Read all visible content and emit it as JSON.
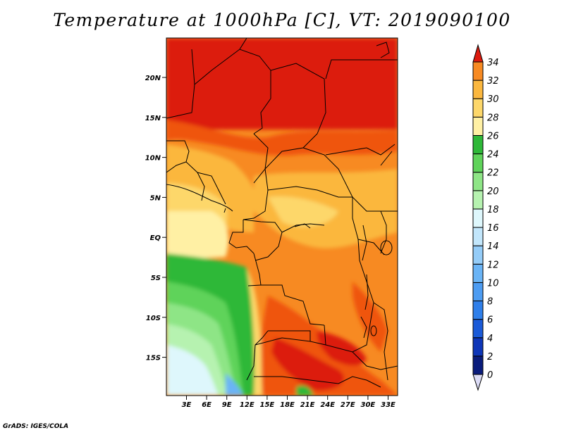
{
  "title": "Temperature at 1000hPa [C], VT: 2019090100",
  "credit": "GrADS: IGES/COLA",
  "map": {
    "lat_labels": [
      "20N",
      "15N",
      "10N",
      "5N",
      "EQ",
      "5S",
      "10S",
      "15S"
    ],
    "lon_labels": [
      "3E",
      "6E",
      "9E",
      "12E",
      "15E",
      "18E",
      "21E",
      "24E",
      "27E",
      "30E",
      "33E"
    ]
  },
  "colorbar": {
    "levels": [
      "0",
      "2",
      "4",
      "6",
      "8",
      "10",
      "12",
      "14",
      "16",
      "18",
      "20",
      "22",
      "24",
      "26",
      "28",
      "30",
      "32",
      "34"
    ],
    "colors": [
      "#0a1c7c",
      "#0e36b8",
      "#1a5ad8",
      "#2f7fea",
      "#4d9cf2",
      "#6ab4f6",
      "#94ccf8",
      "#c2e6fb",
      "#def7fc",
      "#b6f2b0",
      "#8ee586",
      "#5fd35a",
      "#2eb838",
      "#fff0a4",
      "#fdd76a",
      "#fbb73e",
      "#f78a22",
      "#ef5410",
      "#dc1a0e"
    ]
  },
  "colors": {
    "land_hot": "#dc1a0e",
    "sea_cool": "#5fd35a",
    "border": "#000000"
  }
}
